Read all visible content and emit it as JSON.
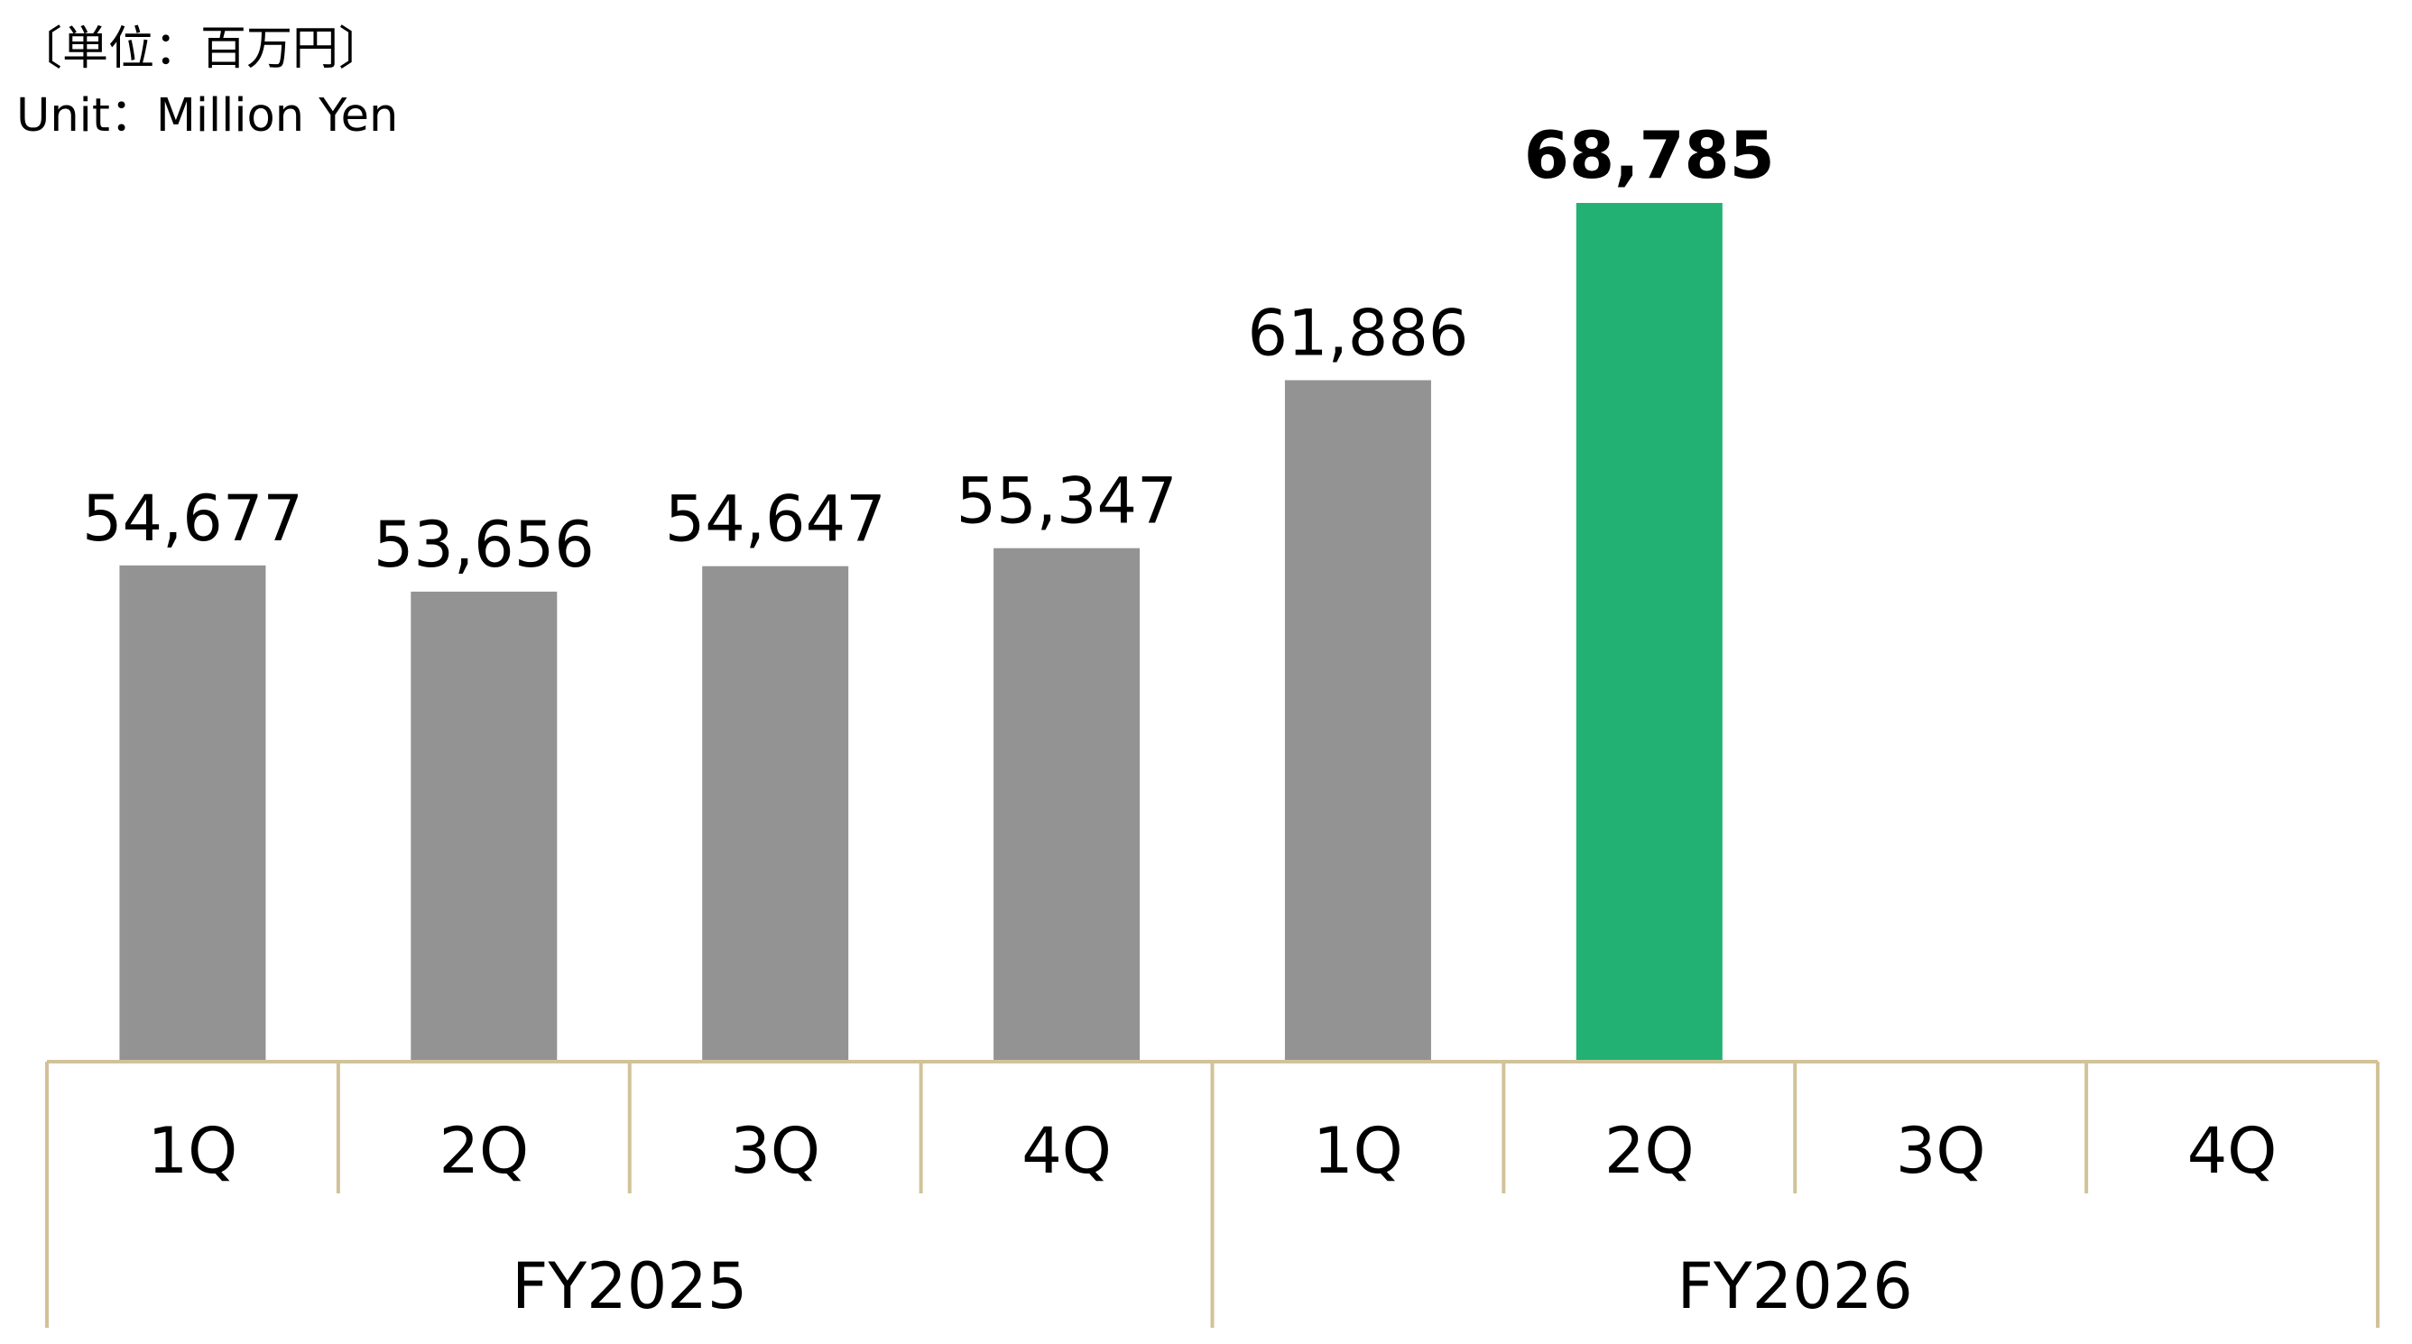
{
  "unit_ja": "〔単位：百万円〕",
  "unit_en": "Unit：Million Yen",
  "colors": {
    "bar_default": "#939393",
    "bar_highlight": "#22b173",
    "axis_line": "#d2c299",
    "text": "#000000"
  },
  "chart_data": {
    "type": "bar",
    "quarters": [
      "1Q",
      "2Q",
      "3Q",
      "4Q",
      "1Q",
      "2Q",
      "3Q",
      "4Q"
    ],
    "fiscal_years": [
      "FY2025",
      "FY2026"
    ],
    "values": [
      54677,
      53656,
      54647,
      55347,
      61886,
      68785,
      null,
      null
    ],
    "value_labels": [
      "54,677",
      "53,656",
      "54,647",
      "55,347",
      "61,886",
      "68,785",
      "",
      ""
    ],
    "highlight_index": 5,
    "ylim": [
      35360,
      68785
    ],
    "grid": false,
    "legend": "none"
  }
}
